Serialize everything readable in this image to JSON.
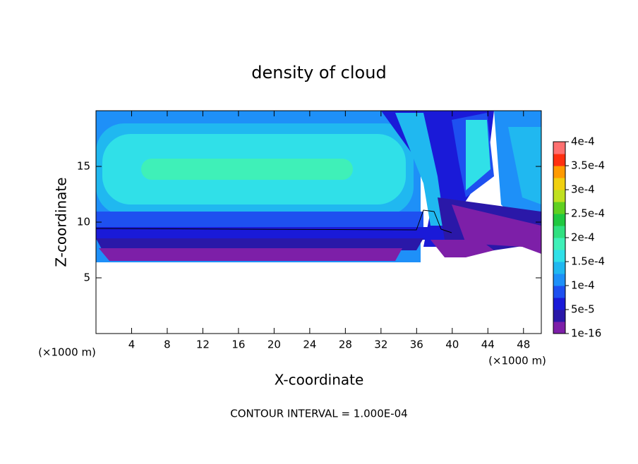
{
  "chart_data": {
    "type": "contour",
    "title": "density of cloud",
    "x_label": "X-coordinate",
    "y_label": "Z-coordinate",
    "x_unit": "(×1000 m)",
    "y_unit": "(×1000 m)",
    "note": "CONTOUR INTERVAL = 1.000E-04",
    "xlim": [
      0,
      50
    ],
    "xticks": [
      4,
      8,
      12,
      16,
      20,
      24,
      28,
      32,
      36,
      40,
      44,
      48
    ],
    "ylim": [
      0,
      20
    ],
    "yticks": [
      5,
      10,
      15
    ],
    "colorbar": {
      "lim": [
        1e-16,
        0.0004
      ],
      "ticks": [
        {
          "value": 1e-16,
          "label": "1e-16"
        },
        {
          "value": 5e-05,
          "label": "5e-5"
        },
        {
          "value": 0.0001,
          "label": "1e-4"
        },
        {
          "value": 0.00015,
          "label": "1.5e-4"
        },
        {
          "value": 0.0002,
          "label": "2e-4"
        },
        {
          "value": 0.00025,
          "label": "2.5e-4"
        },
        {
          "value": 0.0003,
          "label": "3e-4"
        },
        {
          "value": 0.00035,
          "label": "3.5e-4"
        },
        {
          "value": 0.0004,
          "label": "4e-4"
        }
      ],
      "colors": [
        "#7d1fa8",
        "#2a18a8",
        "#1a1ad8",
        "#1e50f0",
        "#1e90f8",
        "#20b8f0",
        "#30e0e8",
        "#3ff0b8",
        "#30e080",
        "#20c840",
        "#60d020",
        "#c0e020",
        "#f0d010",
        "#ff9a00",
        "#ff3010",
        "#ff7070"
      ]
    }
  }
}
